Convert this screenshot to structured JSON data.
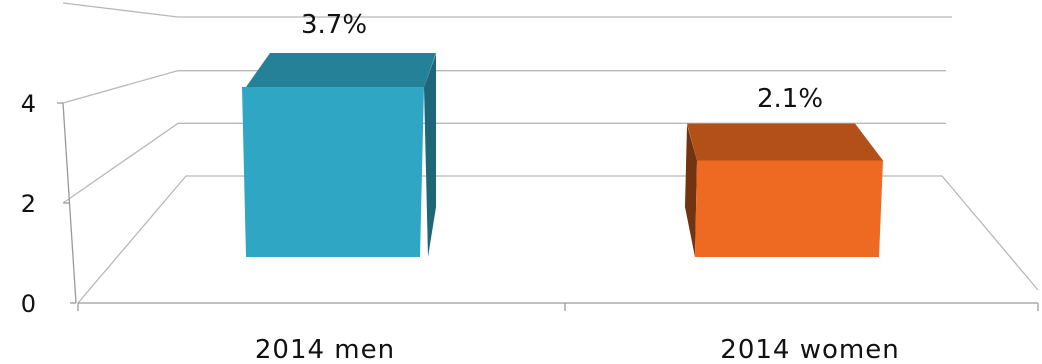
{
  "chart_data": {
    "type": "bar",
    "style": "3d-column",
    "categories": [
      "2014 men",
      "2014 women"
    ],
    "values": [
      3.7,
      2.1
    ],
    "data_labels": [
      "3.7%",
      "2.1%"
    ],
    "y_ticks": [
      "0",
      "2",
      "4"
    ],
    "ylim": [
      0,
      6
    ],
    "grid": true,
    "legend": "none",
    "colors": [
      "#2fa6c3",
      "#ee6a22"
    ]
  }
}
